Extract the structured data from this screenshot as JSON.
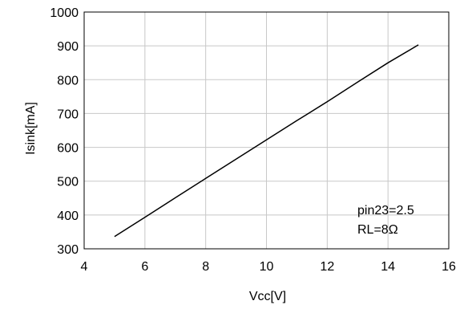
{
  "chart_data": {
    "type": "line",
    "title": "",
    "xlabel": "Vcc[V]",
    "ylabel": "Isink[mA]",
    "xlim": [
      4,
      16
    ],
    "ylim": [
      300,
      1000
    ],
    "x_ticks": [
      4,
      6,
      8,
      10,
      12,
      14,
      16
    ],
    "y_ticks": [
      300,
      400,
      500,
      600,
      700,
      800,
      900,
      1000
    ],
    "grid": true,
    "series": [
      {
        "color": "#000000",
        "x": [
          5,
          6,
          7,
          8,
          9,
          10,
          11,
          12,
          13,
          14,
          15
        ],
        "y": [
          336,
          393,
          451,
          508,
          565,
          622,
          679,
          735,
          793,
          850,
          903
        ]
      }
    ],
    "annotations": [
      "pin23=2.5",
      "RL=8Ω"
    ]
  }
}
